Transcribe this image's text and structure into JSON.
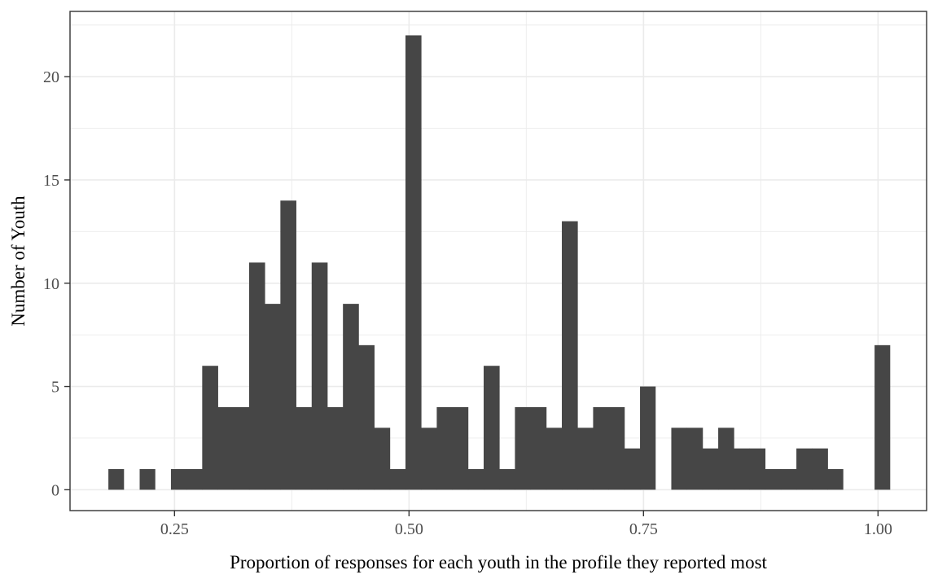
{
  "figure": {
    "x_axis_title": "Proportion of responses for each youth in the profile they reported most",
    "y_axis_title": "Number of Youth"
  },
  "chart_data": {
    "type": "bar",
    "subtype": "histogram",
    "title": "",
    "xlabel": "Proportion of responses for each youth in the profile they reported most",
    "ylabel": "Number of Youth",
    "bin_start": 0.1795,
    "bin_width": 0.01667,
    "counts": [
      1,
      0,
      1,
      0,
      1,
      1,
      6,
      4,
      4,
      11,
      9,
      14,
      4,
      11,
      4,
      9,
      7,
      3,
      1,
      22,
      3,
      4,
      4,
      1,
      6,
      1,
      4,
      4,
      3,
      13,
      3,
      4,
      4,
      2,
      5,
      0,
      3,
      3,
      2,
      3,
      2,
      2,
      1,
      1,
      2,
      2,
      1,
      0,
      0,
      7
    ],
    "total_youth": 203,
    "x_ticks": {
      "major": [
        0.25,
        0.5,
        0.75,
        1.0
      ],
      "labels": [
        "0.25",
        "0.50",
        "0.75",
        "1.00"
      ],
      "minor": [
        0.375,
        0.625,
        0.875
      ]
    },
    "y_ticks": {
      "major": [
        0,
        5,
        10,
        15,
        20
      ],
      "labels": [
        "0",
        "5",
        "10",
        "15",
        "20"
      ],
      "minor": [
        2.5,
        7.5,
        12.5,
        17.5,
        22.5
      ]
    },
    "xlim": [
      0.1386,
      1.0518
    ],
    "ylim": [
      -1.01,
      23.16
    ],
    "grid": true,
    "legend_position": "none",
    "colors": {
      "bar_fill": "#464646",
      "grid": "#ebebeb",
      "panel_border": "#333333",
      "tick_mark": "#333333",
      "tick_text": "#4d4d4d",
      "title_text": "#000000",
      "background": "#ffffff"
    }
  }
}
